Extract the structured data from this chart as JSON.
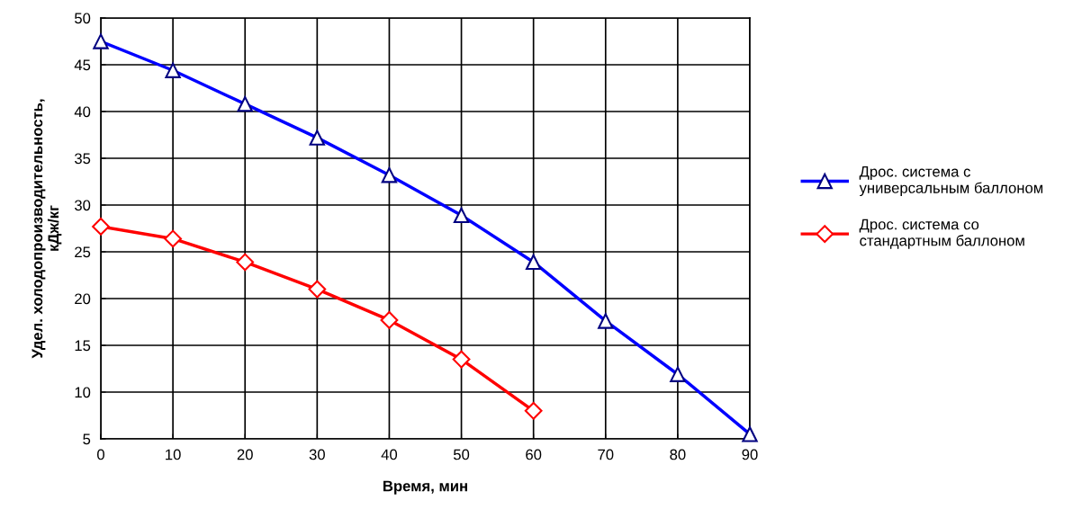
{
  "chart_data": {
    "type": "line",
    "xlabel": "Время, мин",
    "ylabel": "Удел. холодопроизводительность,\nкДж/кг",
    "x": [
      0,
      10,
      20,
      30,
      40,
      50,
      60,
      70,
      80,
      90
    ],
    "series": [
      {
        "name": "Дрос. система с\nуниверсальным баллоном",
        "color": "#0000ff",
        "marker": "triangle",
        "values": [
          47.5,
          44.4,
          40.8,
          37.2,
          33.2,
          28.9,
          23.9,
          17.6,
          11.9,
          5.5
        ]
      },
      {
        "name": "Дрос. система со\nстандартным баллоном",
        "color": "#ff0000",
        "marker": "diamond",
        "values": [
          27.7,
          26.4,
          23.9,
          21.0,
          17.7,
          13.5,
          8.0,
          null,
          null,
          null
        ]
      }
    ],
    "xlim": [
      0,
      90
    ],
    "xticks": [
      0,
      10,
      20,
      30,
      40,
      50,
      60,
      70,
      80,
      90
    ],
    "ylim": [
      5,
      50
    ],
    "yticks": [
      5,
      10,
      15,
      20,
      25,
      30,
      35,
      40,
      45,
      50
    ],
    "grid": true,
    "legend": "right",
    "line_style": "solid"
  }
}
